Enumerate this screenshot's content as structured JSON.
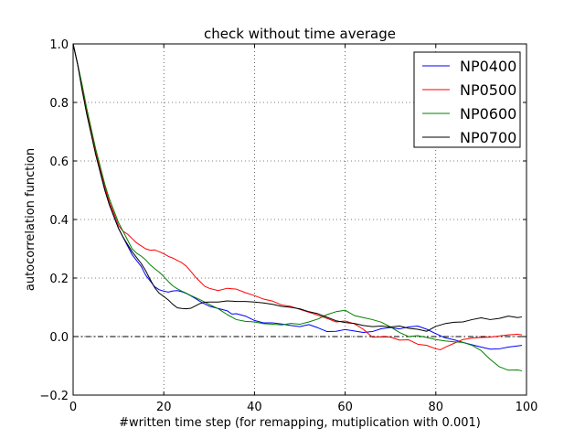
{
  "chart_data": {
    "type": "line",
    "title": "check without time average",
    "xlabel": "#written time step (for remapping, mutiplication with 0.001)",
    "ylabel": "autocorrelation function",
    "xlim": [
      0,
      100
    ],
    "ylim": [
      -0.2,
      1.0
    ],
    "xticks": [
      0,
      20,
      40,
      60,
      80,
      100
    ],
    "yticks": [
      -0.2,
      0.0,
      0.2,
      0.4,
      0.6,
      0.8,
      1.0
    ],
    "xtick_labels": [
      "0",
      "20",
      "40",
      "60",
      "80",
      "100"
    ],
    "ytick_labels": [
      "−0.2",
      "0.0",
      "0.2",
      "0.4",
      "0.6",
      "0.8",
      "1.0"
    ],
    "grid": true,
    "legend_position": "top-right",
    "reference_line": {
      "y": 0.0,
      "style": "dash-dot",
      "color": "#000000"
    },
    "series": [
      {
        "name": "NP0400",
        "color": "#0000ff",
        "points": [
          [
            0,
            1.0
          ],
          [
            1,
            0.93
          ],
          [
            2,
            0.85
          ],
          [
            3,
            0.77
          ],
          [
            4,
            0.7
          ],
          [
            5,
            0.63
          ],
          [
            6,
            0.56
          ],
          [
            7,
            0.5
          ],
          [
            8,
            0.45
          ],
          [
            9,
            0.41
          ],
          [
            10,
            0.37
          ],
          [
            11,
            0.34
          ],
          [
            12,
            0.31
          ],
          [
            13,
            0.28
          ],
          [
            14,
            0.26
          ],
          [
            15,
            0.24
          ],
          [
            16,
            0.21
          ],
          [
            17,
            0.19
          ],
          [
            18,
            0.17
          ],
          [
            19,
            0.16
          ],
          [
            20,
            0.155
          ],
          [
            21,
            0.152
          ],
          [
            22,
            0.156
          ],
          [
            23,
            0.157
          ],
          [
            24,
            0.153
          ],
          [
            25,
            0.147
          ],
          [
            26,
            0.139
          ],
          [
            27,
            0.13
          ],
          [
            28,
            0.12
          ],
          [
            29,
            0.112
          ],
          [
            30,
            0.104
          ],
          [
            32,
            0.096
          ],
          [
            34,
            0.088
          ],
          [
            35,
            0.077
          ],
          [
            36,
            0.078
          ],
          [
            38,
            0.07
          ],
          [
            40,
            0.055
          ],
          [
            42,
            0.047
          ],
          [
            44,
            0.047
          ],
          [
            46,
            0.043
          ],
          [
            48,
            0.038
          ],
          [
            50,
            0.034
          ],
          [
            52,
            0.041
          ],
          [
            54,
            0.03
          ],
          [
            56,
            0.017
          ],
          [
            58,
            0.018
          ],
          [
            60,
            0.024
          ],
          [
            62,
            0.019
          ],
          [
            64,
            0.014
          ],
          [
            66,
            0.017
          ],
          [
            68,
            0.027
          ],
          [
            70,
            0.031
          ],
          [
            72,
            0.026
          ],
          [
            74,
            0.033
          ],
          [
            76,
            0.036
          ],
          [
            78,
            0.025
          ],
          [
            80,
            0.01
          ],
          [
            82,
            -0.004
          ],
          [
            84,
            -0.011
          ],
          [
            86,
            -0.02
          ],
          [
            88,
            -0.028
          ],
          [
            90,
            -0.036
          ],
          [
            92,
            -0.043
          ],
          [
            94,
            -0.042
          ],
          [
            96,
            -0.036
          ],
          [
            98,
            -0.032
          ],
          [
            99,
            -0.03
          ]
        ]
      },
      {
        "name": "NP0500",
        "color": "#ff0000",
        "points": [
          [
            0,
            1.0
          ],
          [
            1,
            0.93
          ],
          [
            2,
            0.85
          ],
          [
            3,
            0.77
          ],
          [
            4,
            0.7
          ],
          [
            5,
            0.63
          ],
          [
            6,
            0.57
          ],
          [
            7,
            0.51
          ],
          [
            8,
            0.46
          ],
          [
            9,
            0.42
          ],
          [
            10,
            0.38
          ],
          [
            11,
            0.36
          ],
          [
            12,
            0.35
          ],
          [
            13,
            0.335
          ],
          [
            14,
            0.32
          ],
          [
            15,
            0.31
          ],
          [
            16,
            0.3
          ],
          [
            17,
            0.295
          ],
          [
            18,
            0.296
          ],
          [
            19,
            0.29
          ],
          [
            20,
            0.283
          ],
          [
            21,
            0.274
          ],
          [
            22,
            0.268
          ],
          [
            23,
            0.26
          ],
          [
            24,
            0.252
          ],
          [
            25,
            0.24
          ],
          [
            26,
            0.222
          ],
          [
            27,
            0.203
          ],
          [
            28,
            0.188
          ],
          [
            29,
            0.172
          ],
          [
            30,
            0.165
          ],
          [
            32,
            0.157
          ],
          [
            34,
            0.165
          ],
          [
            36,
            0.162
          ],
          [
            38,
            0.15
          ],
          [
            40,
            0.14
          ],
          [
            42,
            0.128
          ],
          [
            44,
            0.121
          ],
          [
            46,
            0.108
          ],
          [
            48,
            0.103
          ],
          [
            50,
            0.093
          ],
          [
            52,
            0.083
          ],
          [
            54,
            0.073
          ],
          [
            56,
            0.062
          ],
          [
            58,
            0.05
          ],
          [
            60,
            0.053
          ],
          [
            62,
            0.044
          ],
          [
            64,
            0.025
          ],
          [
            66,
            -0.002
          ],
          [
            68,
            -0.001
          ],
          [
            70,
            -0.002
          ],
          [
            72,
            -0.012
          ],
          [
            74,
            -0.011
          ],
          [
            76,
            -0.026
          ],
          [
            78,
            -0.03
          ],
          [
            80,
            -0.042
          ],
          [
            81,
            -0.045
          ],
          [
            82,
            -0.037
          ],
          [
            84,
            -0.023
          ],
          [
            86,
            -0.01
          ],
          [
            88,
            -0.005
          ],
          [
            90,
            -0.003
          ],
          [
            92,
            -0.002
          ],
          [
            94,
            0.002
          ],
          [
            96,
            0.006
          ],
          [
            98,
            0.008
          ],
          [
            99,
            0.006
          ]
        ]
      },
      {
        "name": "NP0600",
        "color": "#008000",
        "points": [
          [
            0,
            1.0
          ],
          [
            1,
            0.93
          ],
          [
            2,
            0.86
          ],
          [
            3,
            0.78
          ],
          [
            4,
            0.71
          ],
          [
            5,
            0.64
          ],
          [
            6,
            0.58
          ],
          [
            7,
            0.52
          ],
          [
            8,
            0.47
          ],
          [
            9,
            0.43
          ],
          [
            10,
            0.39
          ],
          [
            11,
            0.36
          ],
          [
            12,
            0.33
          ],
          [
            13,
            0.3
          ],
          [
            14,
            0.285
          ],
          [
            15,
            0.275
          ],
          [
            16,
            0.262
          ],
          [
            17,
            0.245
          ],
          [
            18,
            0.232
          ],
          [
            19,
            0.22
          ],
          [
            20,
            0.205
          ],
          [
            21,
            0.188
          ],
          [
            22,
            0.173
          ],
          [
            23,
            0.163
          ],
          [
            24,
            0.155
          ],
          [
            25,
            0.148
          ],
          [
            26,
            0.14
          ],
          [
            27,
            0.133
          ],
          [
            28,
            0.126
          ],
          [
            29,
            0.118
          ],
          [
            30,
            0.11
          ],
          [
            32,
            0.095
          ],
          [
            34,
            0.075
          ],
          [
            36,
            0.058
          ],
          [
            38,
            0.052
          ],
          [
            40,
            0.05
          ],
          [
            42,
            0.044
          ],
          [
            44,
            0.042
          ],
          [
            46,
            0.04
          ],
          [
            48,
            0.045
          ],
          [
            50,
            0.042
          ],
          [
            52,
            0.05
          ],
          [
            54,
            0.06
          ],
          [
            56,
            0.075
          ],
          [
            58,
            0.085
          ],
          [
            60,
            0.09
          ],
          [
            62,
            0.072
          ],
          [
            64,
            0.065
          ],
          [
            66,
            0.058
          ],
          [
            68,
            0.049
          ],
          [
            70,
            0.033
          ],
          [
            72,
            0.014
          ],
          [
            74,
            0.0
          ],
          [
            76,
            0.003
          ],
          [
            78,
            -0.003
          ],
          [
            80,
            -0.01
          ],
          [
            82,
            -0.015
          ],
          [
            84,
            -0.018
          ],
          [
            86,
            -0.02
          ],
          [
            88,
            -0.03
          ],
          [
            90,
            -0.048
          ],
          [
            92,
            -0.078
          ],
          [
            94,
            -0.103
          ],
          [
            96,
            -0.115
          ],
          [
            98,
            -0.114
          ],
          [
            99,
            -0.117
          ]
        ]
      },
      {
        "name": "NP0700",
        "color": "#000000",
        "points": [
          [
            0,
            1.0
          ],
          [
            1,
            0.93
          ],
          [
            2,
            0.84
          ],
          [
            3,
            0.76
          ],
          [
            4,
            0.69
          ],
          [
            5,
            0.62
          ],
          [
            6,
            0.56
          ],
          [
            7,
            0.5
          ],
          [
            8,
            0.45
          ],
          [
            9,
            0.41
          ],
          [
            10,
            0.37
          ],
          [
            11,
            0.34
          ],
          [
            12,
            0.315
          ],
          [
            13,
            0.29
          ],
          [
            14,
            0.27
          ],
          [
            15,
            0.25
          ],
          [
            16,
            0.225
          ],
          [
            17,
            0.195
          ],
          [
            18,
            0.167
          ],
          [
            19,
            0.148
          ],
          [
            20,
            0.137
          ],
          [
            21,
            0.125
          ],
          [
            22,
            0.11
          ],
          [
            23,
            0.098
          ],
          [
            24,
            0.096
          ],
          [
            25,
            0.095
          ],
          [
            26,
            0.097
          ],
          [
            27,
            0.105
          ],
          [
            28,
            0.113
          ],
          [
            29,
            0.117
          ],
          [
            30,
            0.118
          ],
          [
            32,
            0.118
          ],
          [
            34,
            0.122
          ],
          [
            36,
            0.12
          ],
          [
            38,
            0.12
          ],
          [
            40,
            0.118
          ],
          [
            42,
            0.115
          ],
          [
            44,
            0.11
          ],
          [
            46,
            0.103
          ],
          [
            48,
            0.1
          ],
          [
            50,
            0.095
          ],
          [
            52,
            0.085
          ],
          [
            54,
            0.078
          ],
          [
            56,
            0.066
          ],
          [
            58,
            0.054
          ],
          [
            60,
            0.048
          ],
          [
            62,
            0.045
          ],
          [
            64,
            0.038
          ],
          [
            66,
            0.034
          ],
          [
            68,
            0.036
          ],
          [
            70,
            0.033
          ],
          [
            72,
            0.036
          ],
          [
            74,
            0.028
          ],
          [
            76,
            0.025
          ],
          [
            78,
            0.018
          ],
          [
            80,
            0.035
          ],
          [
            82,
            0.044
          ],
          [
            84,
            0.049
          ],
          [
            86,
            0.05
          ],
          [
            88,
            0.058
          ],
          [
            90,
            0.064
          ],
          [
            92,
            0.058
          ],
          [
            94,
            0.062
          ],
          [
            96,
            0.07
          ],
          [
            98,
            0.065
          ],
          [
            99,
            0.067
          ]
        ]
      }
    ]
  }
}
